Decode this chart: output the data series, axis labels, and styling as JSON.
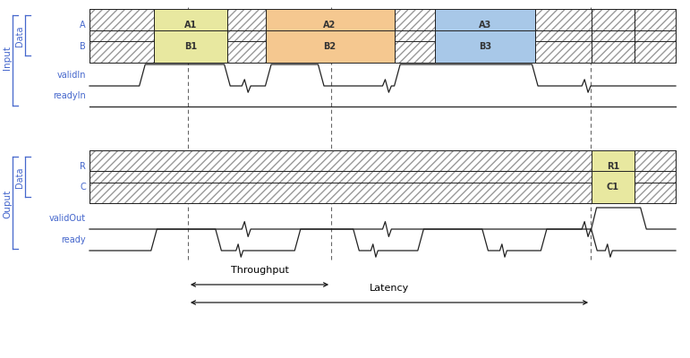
{
  "bg_color": "#ffffff",
  "signal_color": "#222222",
  "hatch_color": "#999999",
  "dashed_line_color": "#666666",
  "label_color": "#4466cc",
  "fig_width": 7.71,
  "fig_height": 4.0,
  "dpi": 100,
  "xlim": [
    0,
    10.0
  ],
  "ylim": [
    0,
    10.0
  ],
  "dashed_vlines": [
    2.1,
    4.8,
    8.6
  ],
  "rows": {
    "A": 1.0,
    "B": 0.55,
    "validIn": 0.0,
    "readyIn": -0.5,
    "R": -2.0,
    "C": -2.5,
    "validOut": -3.1,
    "ready": -3.6
  },
  "signal_height": 0.35,
  "clock_height": 0.28,
  "colors": {
    "A1": "#e8e8a0",
    "A2": "#f5c890",
    "A3": "#a8c8e8",
    "B1": "#e8e8a0",
    "B2": "#f5c890",
    "B3": "#a8c8e8",
    "R1": "#e8e8a0",
    "C1": "#e8e8a0"
  }
}
